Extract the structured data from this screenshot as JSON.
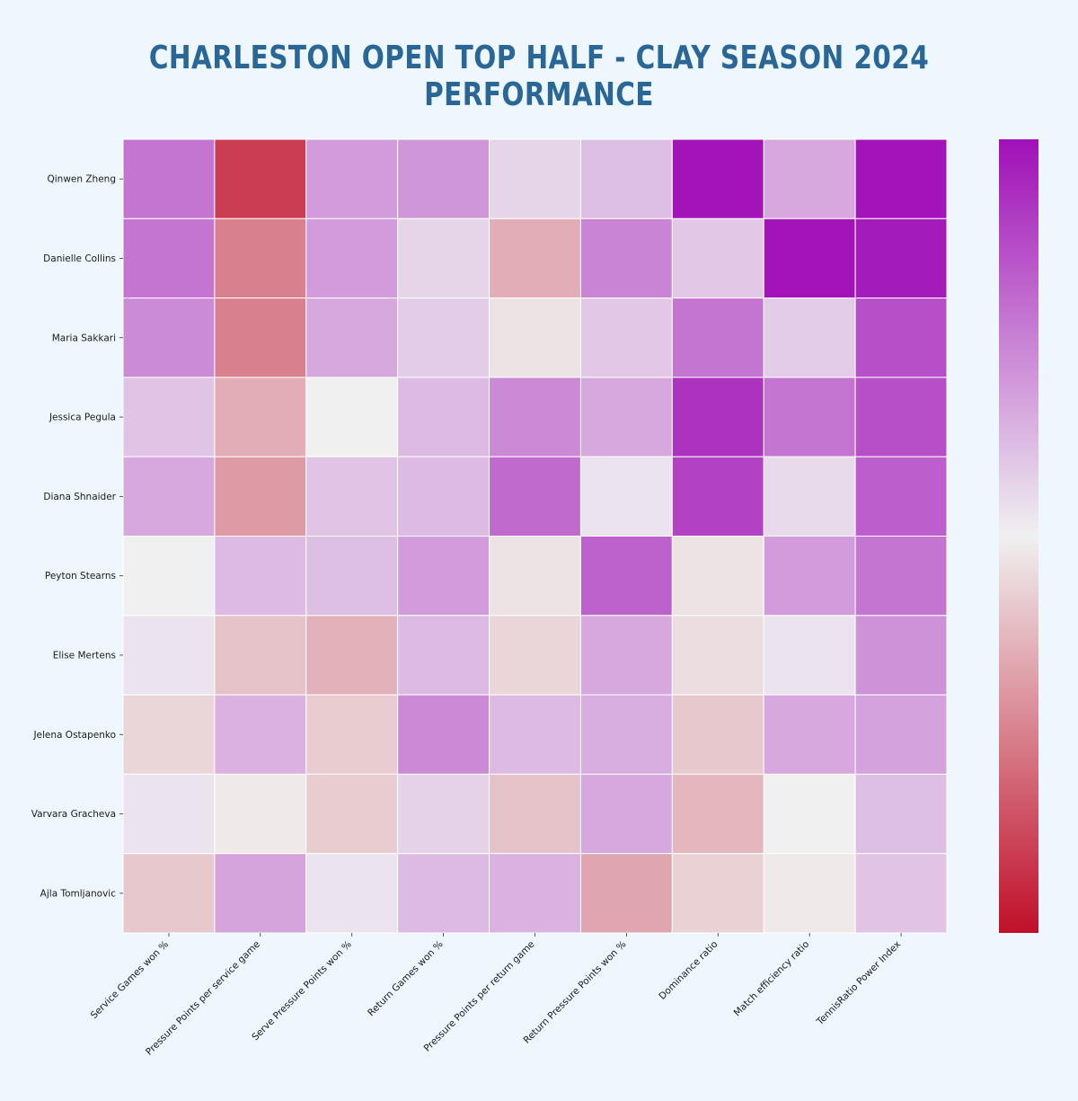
{
  "chart_data": {
    "type": "heatmap",
    "title": "CHARLESTON OPEN TOP HALF - CLAY SEASON 2024 PERFORMANCE",
    "rows": [
      "Qinwen Zheng",
      "Danielle Collins",
      "Maria Sakkari",
      "Jessica Pegula",
      "Diana Shnaider",
      "Peyton Stearns",
      "Elise Mertens",
      "Jelena Ostapenko",
      "Varvara Gracheva",
      "Ajla Tomljanovic"
    ],
    "columns": [
      "Service Games won %",
      "Pressure Points per service game",
      "Serve Pressure Points won %",
      "Return Games won %",
      "Pressure Points per return game",
      "Return Pressure Points won %",
      "Dominance ratio",
      "Match efficiency ratio",
      "TennisRatio Power Index"
    ],
    "values": [
      [
        0.55,
        -0.8,
        0.38,
        0.4,
        0.12,
        0.22,
        0.98,
        0.32,
        0.98
      ],
      [
        0.55,
        -0.5,
        0.38,
        0.12,
        -0.3,
        0.48,
        0.18,
        0.98,
        0.95
      ],
      [
        0.45,
        -0.5,
        0.32,
        0.16,
        -0.06,
        0.18,
        0.55,
        0.16,
        0.72
      ],
      [
        0.2,
        -0.3,
        0.0,
        0.24,
        0.46,
        0.32,
        0.85,
        0.55,
        0.72
      ],
      [
        0.32,
        -0.38,
        0.2,
        0.24,
        0.6,
        0.06,
        0.78,
        0.1,
        0.65
      ],
      [
        0.0,
        0.24,
        0.22,
        0.38,
        -0.06,
        0.64,
        -0.06,
        0.38,
        0.55
      ],
      [
        0.06,
        -0.2,
        -0.28,
        0.24,
        -0.12,
        0.32,
        -0.08,
        0.06,
        0.42
      ],
      [
        -0.12,
        0.28,
        -0.16,
        0.46,
        0.24,
        0.3,
        -0.18,
        0.32,
        0.35
      ],
      [
        0.06,
        -0.03,
        -0.16,
        0.14,
        -0.2,
        0.32,
        -0.26,
        0.0,
        0.22
      ],
      [
        -0.18,
        0.34,
        0.06,
        0.24,
        0.28,
        -0.33,
        -0.14,
        -0.03,
        0.2
      ]
    ],
    "vmin": -1,
    "vmax": 1,
    "colormap": {
      "low": "#c0102a",
      "mid": "#f0f0f0",
      "high": "#a010b8"
    },
    "colorbar": true,
    "colorbar_ticks": false
  }
}
